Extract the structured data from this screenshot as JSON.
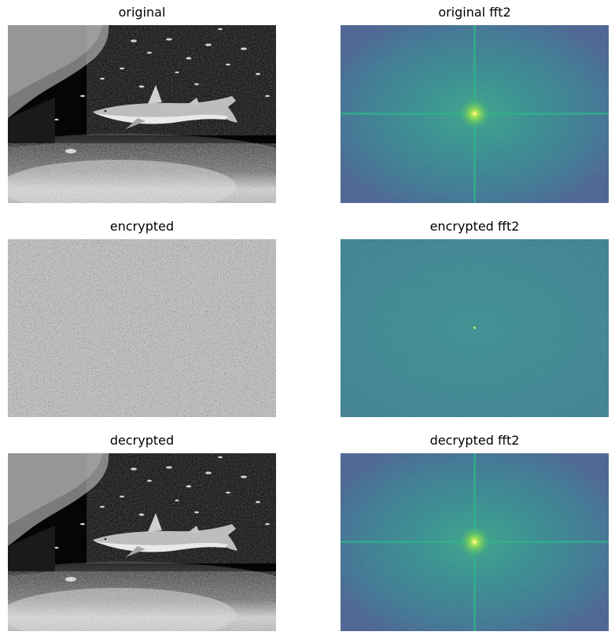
{
  "panels": {
    "original": {
      "title": "original"
    },
    "original_fft": {
      "title": "original fft2"
    },
    "encrypted": {
      "title": "encrypted"
    },
    "encrypted_fft": {
      "title": "encrypted fft2"
    },
    "decrypted": {
      "title": "decrypted"
    },
    "decrypted_fft": {
      "title": "decrypted fft2"
    }
  },
  "colors": {
    "fft_dark": "#3b5c8c",
    "fft_mid": "#2f8c8c",
    "fft_bright": "#9be048",
    "water": "#000000",
    "sand": "#d8d8d8"
  }
}
